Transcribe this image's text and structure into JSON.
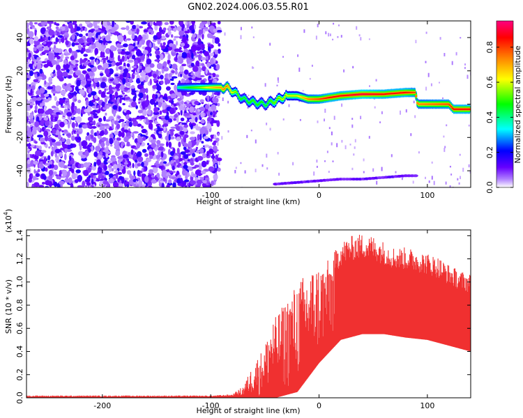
{
  "title": "GN02.2024.006.03.55.R01",
  "chart_data": [
    {
      "type": "heatmap",
      "title": "GN02.2024.006.03.55.R01",
      "xlabel": "Height of straight line (km)",
      "ylabel": "Frequency (Hz)",
      "xlim": [
        -270,
        140
      ],
      "ylim": [
        -50,
        50
      ],
      "x_ticks": [
        -200,
        -100,
        0,
        100
      ],
      "x_tick_labels": [
        "-200",
        "-100",
        "0",
        "100"
      ],
      "y_ticks": [
        -40,
        -20,
        0,
        20,
        40
      ],
      "y_tick_labels": [
        "-40",
        "-20",
        "0",
        "20",
        "40"
      ],
      "colorbar": {
        "label": "Normalized spectral amplitude",
        "range": [
          0,
          0.95
        ],
        "ticks": [
          0,
          0.2,
          0.4,
          0.6,
          0.8
        ],
        "tick_labels": [
          "0.0",
          "0.2",
          "0.4",
          "0.6",
          "0.8"
        ],
        "colormap": [
          "#ffffff",
          "#6600ff",
          "#0000ff",
          "#00ffff",
          "#00ff00",
          "#ffff00",
          "#ff8000",
          "#ff0000",
          "#ff0080"
        ]
      },
      "ridge_track": {
        "x": [
          -130,
          -110,
          -95,
          -85,
          -80,
          -70,
          -60,
          -50,
          -40,
          -30,
          -20,
          -10,
          0,
          10,
          20,
          40,
          60,
          80,
          89,
          91,
          120,
          124,
          140
        ],
        "frequency": [
          10,
          10,
          10,
          10,
          8,
          3,
          1,
          0,
          2,
          5,
          5,
          3,
          3,
          4,
          5,
          6,
          6,
          7,
          7,
          0,
          0,
          -3,
          -3
        ],
        "amplitude": [
          0.4,
          0.55,
          0.7,
          0.75,
          0.6,
          0.45,
          0.5,
          0.45,
          0.55,
          0.6,
          0.6,
          0.75,
          0.8,
          0.85,
          0.85,
          0.9,
          0.85,
          0.85,
          0.8,
          0.75,
          0.8,
          0.85,
          0.85
        ]
      },
      "secondary_track": {
        "x": [
          -40,
          -20,
          0,
          20,
          40,
          60,
          80,
          90
        ],
        "frequency": [
          -48,
          -47,
          -46,
          -45,
          -45,
          -44,
          -43,
          -43
        ]
      }
    },
    {
      "type": "area",
      "xlabel": "Height of straight line (km)",
      "ylabel": "SNR (10 * v/v)",
      "y_multiplier_label": "(x10",
      "y_multiplier_exponent": "4",
      "xlim": [
        -270,
        140
      ],
      "ylim": [
        0,
        1.45
      ],
      "x_ticks": [
        -200,
        -100,
        0,
        100
      ],
      "x_tick_labels": [
        "-200",
        "-100",
        "0",
        "100"
      ],
      "y_ticks": [
        0,
        0.2,
        0.4,
        0.6,
        0.8,
        1.0,
        1.2,
        1.4
      ],
      "y_tick_labels": [
        "0.0",
        "0.2",
        "0.4",
        "0.6",
        "0.8",
        "1.0",
        "1.2",
        "1.4"
      ],
      "color": "#f03030",
      "upper_envelope": {
        "x": [
          -270,
          -150,
          -100,
          -80,
          -70,
          -60,
          -50,
          -45,
          -40,
          -30,
          -20,
          -10,
          0,
          10,
          20,
          30,
          40,
          50,
          60,
          70,
          80,
          90,
          100,
          110,
          120,
          130,
          140
        ],
        "y": [
          0.02,
          0.02,
          0.02,
          0.03,
          0.1,
          0.3,
          0.45,
          0.65,
          0.7,
          0.85,
          1.0,
          1.1,
          1.15,
          1.2,
          1.35,
          1.4,
          1.42,
          1.4,
          1.35,
          1.3,
          1.3,
          1.28,
          1.25,
          1.22,
          1.15,
          1.1,
          1.07
        ]
      },
      "lower_envelope": {
        "x": [
          -270,
          -100,
          -60,
          -40,
          -20,
          0,
          20,
          40,
          60,
          80,
          100,
          120,
          140
        ],
        "y": [
          0.0,
          0.0,
          0.0,
          0.0,
          0.05,
          0.3,
          0.5,
          0.55,
          0.55,
          0.52,
          0.5,
          0.45,
          0.4
        ]
      }
    }
  ]
}
